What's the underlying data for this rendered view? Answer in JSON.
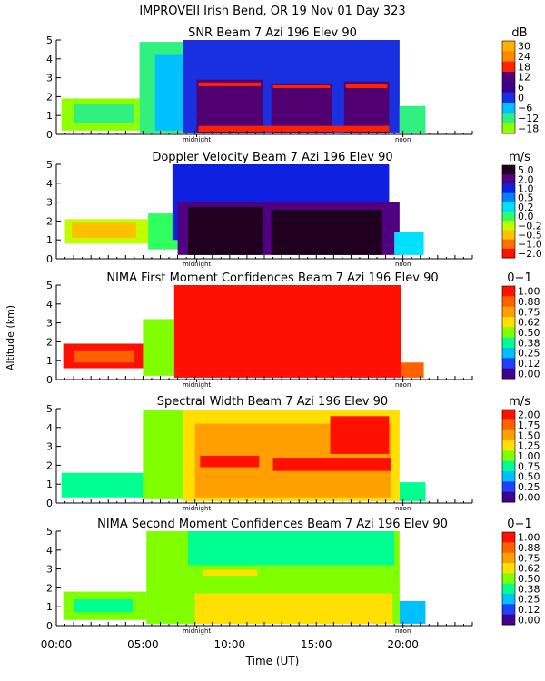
{
  "figure_title": "IMPROVEII  Irish Bend, OR  19 Nov 01 Day 323",
  "shared_ylabel": "Altitude (km)",
  "shared_xlabel": "Time (UT)",
  "x_ticks": [
    "00:00",
    "05:00",
    "10:00",
    "15:00",
    "20:00"
  ],
  "x_tick_values": [
    0,
    5,
    10,
    15,
    20
  ],
  "xlim": [
    0,
    24
  ],
  "annotations": {
    "midnight": "midnight",
    "noon": "noon"
  },
  "annotation_times": {
    "midnight": 8.1,
    "noon": 20.0
  },
  "chart_data": [
    {
      "type": "heatmap",
      "title": "SNR Beam 7 Azi 196 Elev 90",
      "unit": "dB",
      "ylim": [
        0,
        5
      ],
      "y_ticks": [
        "0",
        "1",
        "2",
        "3",
        "4",
        "5"
      ],
      "colorbar_labels": [
        "30",
        "24",
        "18",
        "12",
        "6",
        "0",
        "−6",
        "−12",
        "−18"
      ],
      "colorbar_colors": [
        "#ffb000",
        "#ff8800",
        "#ff2200",
        "#500070",
        "#3a0090",
        "#1830e0",
        "#00c0ff",
        "#30f080",
        "#90ff00"
      ],
      "regions": [
        {
          "x": [
            0.3,
            4.8
          ],
          "y": [
            0.2,
            1.9
          ],
          "color": "#90ff00"
        },
        {
          "x": [
            1.0,
            4.5
          ],
          "y": [
            0.6,
            1.6
          ],
          "color": "#30f080"
        },
        {
          "x": [
            4.8,
            8.0
          ],
          "y": [
            0.1,
            4.9
          ],
          "color": "#30f080"
        },
        {
          "x": [
            5.7,
            7.3
          ],
          "y": [
            0.2,
            4.2
          ],
          "color": "#00c0ff"
        },
        {
          "x": [
            7.3,
            19.8
          ],
          "y": [
            0.1,
            5.0
          ],
          "color": "#1830e0"
        },
        {
          "x": [
            8.1,
            11.9
          ],
          "y": [
            0.1,
            2.9
          ],
          "color": "#500070"
        },
        {
          "x": [
            12.4,
            15.9
          ],
          "y": [
            0.1,
            2.7
          ],
          "color": "#500070"
        },
        {
          "x": [
            16.6,
            19.2
          ],
          "y": [
            0.1,
            2.8
          ],
          "color": "#500070"
        },
        {
          "x": [
            8.2,
            11.8
          ],
          "y": [
            2.55,
            2.75
          ],
          "color": "#ff2200"
        },
        {
          "x": [
            12.5,
            15.8
          ],
          "y": [
            2.45,
            2.6
          ],
          "color": "#ff2200"
        },
        {
          "x": [
            16.7,
            19.1
          ],
          "y": [
            2.45,
            2.65
          ],
          "color": "#ff2200"
        },
        {
          "x": [
            8.2,
            19.2
          ],
          "y": [
            0.15,
            0.45
          ],
          "color": "#ff2200"
        },
        {
          "x": [
            19.8,
            21.3
          ],
          "y": [
            0.1,
            1.5
          ],
          "color": "#30f080"
        }
      ]
    },
    {
      "type": "heatmap",
      "title": "Doppler Velocity Beam 7 Azi 196 Elev 90",
      "unit": "m/s",
      "ylim": [
        0,
        5
      ],
      "y_ticks": [
        "0",
        "1",
        "2",
        "3",
        "4",
        "5"
      ],
      "colorbar_labels": [
        "5.0",
        "2.0",
        "1.0",
        "0.5",
        "0.2",
        "0.0",
        "−0.2",
        "−0.5",
        "−1.0",
        "−2.0"
      ],
      "colorbar_colors": [
        "#200020",
        "#500080",
        "#1020e0",
        "#0080ff",
        "#00e0ff",
        "#30ff60",
        "#c0ff00",
        "#ffc000",
        "#ff7000",
        "#ff1000"
      ],
      "regions": [
        {
          "x": [
            0.5,
            5.3
          ],
          "y": [
            0.8,
            2.1
          ],
          "color": "#c0ff00"
        },
        {
          "x": [
            0.9,
            4.6
          ],
          "y": [
            1.1,
            1.9
          ],
          "color": "#ffc000"
        },
        {
          "x": [
            5.3,
            7.3
          ],
          "y": [
            0.5,
            2.4
          ],
          "color": "#30ff60"
        },
        {
          "x": [
            6.7,
            19.2
          ],
          "y": [
            1.0,
            5.0
          ],
          "color": "#1020e0"
        },
        {
          "x": [
            7.0,
            19.8
          ],
          "y": [
            0.2,
            3.0
          ],
          "color": "#500080"
        },
        {
          "x": [
            7.6,
            11.9
          ],
          "y": [
            0.2,
            2.75
          ],
          "color": "#200020"
        },
        {
          "x": [
            12.4,
            18.8
          ],
          "y": [
            0.2,
            2.6
          ],
          "color": "#200020"
        },
        {
          "x": [
            19.5,
            21.2
          ],
          "y": [
            0.2,
            1.4
          ],
          "color": "#00e0ff"
        }
      ]
    },
    {
      "type": "heatmap",
      "title": "NIMA First Moment Confidences Beam 7 Azi 196 Elev 90",
      "unit": "0−1",
      "ylim": [
        0,
        5
      ],
      "y_ticks": [
        "0",
        "1",
        "2",
        "3",
        "4",
        "5"
      ],
      "colorbar_labels": [
        "1.00",
        "0.88",
        "0.75",
        "0.62",
        "0.50",
        "0.38",
        "0.25",
        "0.12",
        "0.00"
      ],
      "colorbar_colors": [
        "#ff1000",
        "#ff6000",
        "#ffa000",
        "#ffe000",
        "#80ff00",
        "#00ff90",
        "#00c0ff",
        "#2040ff",
        "#400090"
      ],
      "regions": [
        {
          "x": [
            0.4,
            5.3
          ],
          "y": [
            0.6,
            1.9
          ],
          "color": "#ff1000"
        },
        {
          "x": [
            1.0,
            4.5
          ],
          "y": [
            0.9,
            1.5
          ],
          "color": "#ff6000"
        },
        {
          "x": [
            5.0,
            6.8
          ],
          "y": [
            0.2,
            3.2
          ],
          "color": "#80ff00"
        },
        {
          "x": [
            6.8,
            19.9
          ],
          "y": [
            0.1,
            5.0
          ],
          "color": "#ff1000"
        },
        {
          "x": [
            19.9,
            21.2
          ],
          "y": [
            0.1,
            0.9
          ],
          "color": "#ff6000"
        }
      ]
    },
    {
      "type": "heatmap",
      "title": "Spectral Width Beam 7 Azi 196 Elev 90",
      "unit": "m/s",
      "ylim": [
        0,
        5
      ],
      "y_ticks": [
        "0",
        "1",
        "2",
        "3",
        "4",
        "5"
      ],
      "colorbar_labels": [
        "2.00",
        "1.75",
        "1.50",
        "1.25",
        "1.00",
        "0.75",
        "0.50",
        "0.25",
        "0.00"
      ],
      "colorbar_colors": [
        "#ff1000",
        "#ff6000",
        "#ffa000",
        "#ffe000",
        "#80ff00",
        "#00ff90",
        "#00c0ff",
        "#2040ff",
        "#400090"
      ],
      "regions": [
        {
          "x": [
            0.3,
            5.0
          ],
          "y": [
            0.3,
            1.6
          ],
          "color": "#00ff90"
        },
        {
          "x": [
            5.0,
            7.3
          ],
          "y": [
            0.2,
            4.9
          ],
          "color": "#80ff00"
        },
        {
          "x": [
            7.3,
            19.8
          ],
          "y": [
            0.1,
            4.9
          ],
          "color": "#ffe000"
        },
        {
          "x": [
            8.0,
            19.3
          ],
          "y": [
            0.3,
            4.2
          ],
          "color": "#ffa000"
        },
        {
          "x": [
            8.3,
            11.7
          ],
          "y": [
            1.9,
            2.5
          ],
          "color": "#ff1000"
        },
        {
          "x": [
            12.5,
            19.3
          ],
          "y": [
            1.7,
            2.4
          ],
          "color": "#ff1000"
        },
        {
          "x": [
            15.8,
            19.2
          ],
          "y": [
            2.6,
            4.6
          ],
          "color": "#ff1000"
        },
        {
          "x": [
            19.8,
            21.3
          ],
          "y": [
            0.1,
            1.1
          ],
          "color": "#00ff90"
        }
      ]
    },
    {
      "type": "heatmap",
      "title": "NIMA Second Moment Confidences Beam 7 Azi 196 Elev 90",
      "unit": "0−1",
      "ylim": [
        0,
        5
      ],
      "y_ticks": [
        "0",
        "1",
        "2",
        "3",
        "4",
        "5"
      ],
      "colorbar_labels": [
        "1.00",
        "0.88",
        "0.75",
        "0.62",
        "0.50",
        "0.38",
        "0.25",
        "0.12",
        "0.00"
      ],
      "colorbar_colors": [
        "#ff1000",
        "#ff6000",
        "#ffa000",
        "#ffe000",
        "#80ff00",
        "#00ff90",
        "#00c0ff",
        "#2040ff",
        "#400090"
      ],
      "regions": [
        {
          "x": [
            0.4,
            5.2
          ],
          "y": [
            0.3,
            1.8
          ],
          "color": "#80ff00"
        },
        {
          "x": [
            1.0,
            4.4
          ],
          "y": [
            0.7,
            1.4
          ],
          "color": "#00ff90"
        },
        {
          "x": [
            5.2,
            19.8
          ],
          "y": [
            0.1,
            5.0
          ],
          "color": "#80ff00"
        },
        {
          "x": [
            7.6,
            19.5
          ],
          "y": [
            3.2,
            5.0
          ],
          "color": "#00ff90"
        },
        {
          "x": [
            8.0,
            19.4
          ],
          "y": [
            0.1,
            1.7
          ],
          "color": "#ffe000"
        },
        {
          "x": [
            8.5,
            11.6
          ],
          "y": [
            2.65,
            2.95
          ],
          "color": "#ffe000"
        },
        {
          "x": [
            19.8,
            21.3
          ],
          "y": [
            0.1,
            1.3
          ],
          "color": "#00c0ff"
        }
      ]
    }
  ]
}
